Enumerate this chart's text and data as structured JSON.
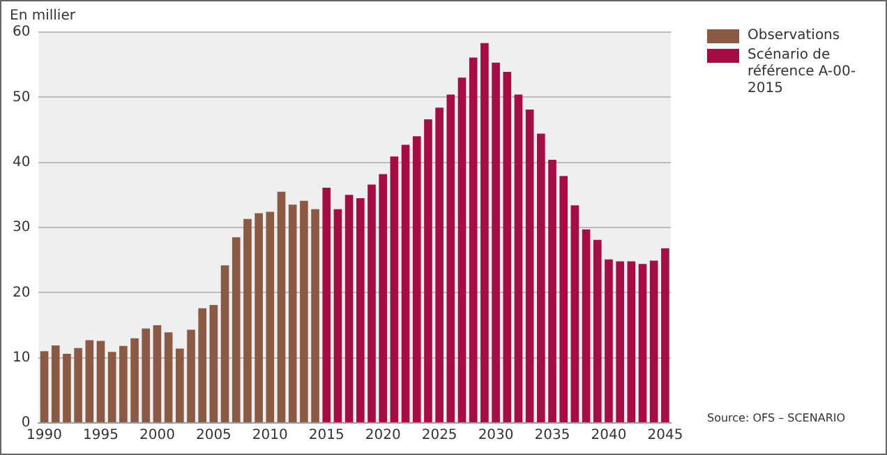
{
  "chart_data": {
    "type": "bar",
    "ylabel": "En millier",
    "categories": [
      "1990",
      null,
      null,
      null,
      null,
      "1995",
      null,
      null,
      null,
      null,
      "2000",
      null,
      null,
      null,
      null,
      "2005",
      null,
      null,
      null,
      null,
      "2010",
      null,
      null,
      null,
      null,
      "2015",
      null,
      null,
      null,
      null,
      "2020",
      null,
      null,
      null,
      null,
      "2025",
      null,
      null,
      null,
      null,
      "2030",
      null,
      null,
      null,
      null,
      "2035",
      null,
      null,
      null,
      null,
      "2040",
      null,
      null,
      null,
      null,
      "2045"
    ],
    "series": [
      {
        "name": "Observations",
        "color": "#8b5a44",
        "values": [
          11,
          11.9,
          10.6,
          11.5,
          12.7,
          12.6,
          10.9,
          11.8,
          13,
          14.5,
          15,
          13.9,
          11.4,
          14.3,
          17.6,
          18.1,
          24.2,
          28.5,
          31.3,
          32.2,
          32.4,
          35.5,
          33.5,
          34.1,
          32.8,
          null,
          null,
          null,
          null,
          null,
          null,
          null,
          null,
          null,
          null,
          null,
          null,
          null,
          null,
          null,
          null,
          null,
          null,
          null,
          null,
          null,
          null,
          null,
          null,
          null,
          null,
          null,
          null,
          null,
          null,
          null
        ]
      },
      {
        "name": "Scénario de référence A-00-2015",
        "color": "#a50d45",
        "values": [
          null,
          null,
          null,
          null,
          null,
          null,
          null,
          null,
          null,
          null,
          null,
          null,
          null,
          null,
          null,
          null,
          null,
          null,
          null,
          null,
          null,
          null,
          null,
          null,
          null,
          36.1,
          32.8,
          35,
          34.5,
          36.6,
          38.2,
          40.9,
          42.7,
          44,
          46.6,
          48.4,
          50.4,
          53,
          56.1,
          58.3,
          55.3,
          53.9,
          50.4,
          48.1,
          44.4,
          40.4,
          37.9,
          33.4,
          29.7,
          28.1,
          25.1,
          24.8,
          24.8,
          24.4,
          24.9,
          26.8
        ]
      }
    ],
    "ylim": [
      0,
      60
    ],
    "yticks": [
      0,
      10,
      20,
      30,
      40,
      50,
      60
    ],
    "grid": "y",
    "legend": "right",
    "annotations": [
      "Source: OFS – SCENARIO"
    ]
  }
}
